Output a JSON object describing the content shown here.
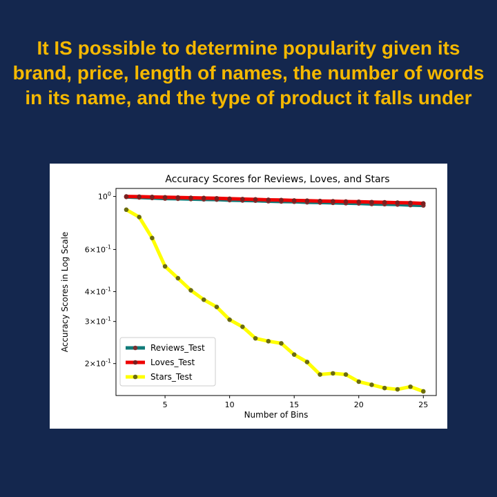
{
  "slide": {
    "title": "It IS possible to determine popularity given its brand, price, length of names, the number of words in its name, and the type of product it falls under"
  },
  "chart_data": {
    "type": "line",
    "title": "Accuracy Scores for Reviews, Loves, and Stars",
    "xlabel": "Number of Bins",
    "ylabel": "Accuracy Scores in Log Scale",
    "yscale": "log",
    "xlim": [
      1.2,
      26.0
    ],
    "ylim": [
      0.147,
      1.08
    ],
    "x_ticks": [
      5,
      10,
      15,
      20,
      25
    ],
    "y_ticks": [
      {
        "value": 1.0,
        "label": "10^0"
      },
      {
        "value": 0.6,
        "label": "6×10^-1"
      },
      {
        "value": 0.4,
        "label": "4×10^-1"
      },
      {
        "value": 0.3,
        "label": "3×10^-1"
      },
      {
        "value": 0.2,
        "label": "2×10^-1"
      }
    ],
    "grid": false,
    "legend_position": "lower-left",
    "x": [
      2,
      3,
      4,
      5,
      6,
      7,
      8,
      9,
      10,
      11,
      12,
      13,
      14,
      15,
      16,
      17,
      18,
      19,
      20,
      21,
      22,
      23,
      24,
      25
    ],
    "series": [
      {
        "name": "Reviews_Test",
        "line_color": "#107a78",
        "marker_color": "#7a3030",
        "values": [
          0.995,
          0.99,
          0.985,
          0.98,
          0.978,
          0.975,
          0.972,
          0.97,
          0.965,
          0.962,
          0.96,
          0.955,
          0.952,
          0.95,
          0.945,
          0.943,
          0.94,
          0.937,
          0.935,
          0.93,
          0.928,
          0.925,
          0.92,
          0.917
        ]
      },
      {
        "name": "Loves_Test",
        "line_color": "#ee0000",
        "marker_color": "#7a2020",
        "values": [
          1.0,
          0.998,
          0.995,
          0.992,
          0.99,
          0.987,
          0.985,
          0.982,
          0.978,
          0.975,
          0.972,
          0.968,
          0.966,
          0.962,
          0.96,
          0.957,
          0.955,
          0.952,
          0.95,
          0.947,
          0.945,
          0.942,
          0.94,
          0.935
        ]
      },
      {
        "name": "Stars_Test",
        "line_color": "#ffff00",
        "marker_color": "#6b6b10",
        "values": [
          0.88,
          0.82,
          0.67,
          0.51,
          0.455,
          0.405,
          0.37,
          0.345,
          0.305,
          0.285,
          0.255,
          0.248,
          0.243,
          0.218,
          0.203,
          0.18,
          0.182,
          0.18,
          0.168,
          0.163,
          0.158,
          0.156,
          0.16,
          0.153
        ]
      }
    ]
  }
}
